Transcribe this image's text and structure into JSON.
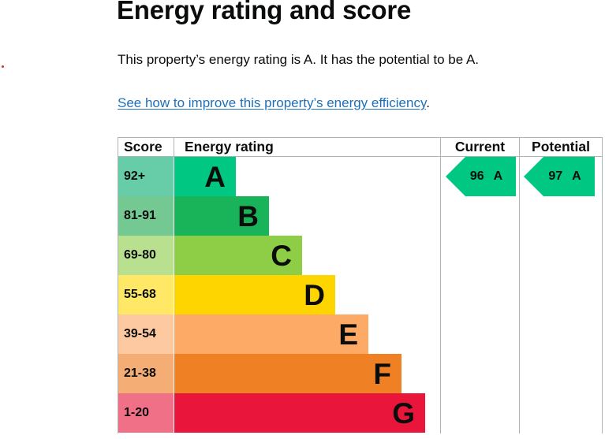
{
  "page": {
    "title": "Energy rating and score",
    "summary": "This property’s energy rating is A. It has the potential to be A.",
    "improve_link": "See how to improve this property’s energy efficiency",
    "improve_punct": "."
  },
  "table": {
    "headers": {
      "score": "Score",
      "rating": "Energy rating",
      "current": "Current",
      "potential": "Potential"
    },
    "bands": [
      {
        "letter": "A",
        "range": "92+",
        "bar_color": "#00c781",
        "score_color": "#67cca8",
        "bar_fraction": 0.2
      },
      {
        "letter": "B",
        "range": "81-91",
        "bar_color": "#19b459",
        "score_color": "#74c891",
        "bar_fraction": 0.34
      },
      {
        "letter": "C",
        "range": "69-80",
        "bar_color": "#8dce46",
        "score_color": "#b9e08e",
        "bar_fraction": 0.48
      },
      {
        "letter": "D",
        "range": "55-68",
        "bar_color": "#ffd500",
        "score_color": "#ffe866",
        "bar_fraction": 0.62
      },
      {
        "letter": "E",
        "range": "39-54",
        "bar_color": "#fcaa65",
        "score_color": "#fdc9a0",
        "bar_fraction": 0.76
      },
      {
        "letter": "F",
        "range": "21-38",
        "bar_color": "#ef8023",
        "score_color": "#f4ae75",
        "bar_fraction": 0.9
      },
      {
        "letter": "G",
        "range": "1-20",
        "bar_color": "#e9153b",
        "score_color": "#f07187",
        "bar_fraction": 1.0
      }
    ],
    "current": {
      "score": "96",
      "letter": "A",
      "color": "#00c781"
    },
    "potential": {
      "score": "97",
      "letter": "A",
      "color": "#00c781"
    }
  }
}
